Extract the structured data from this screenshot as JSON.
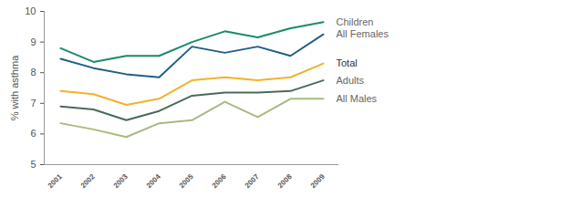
{
  "chart_data": {
    "type": "line",
    "y_label": "% with asthma",
    "x": [
      2001,
      2002,
      2003,
      2004,
      2005,
      2006,
      2007,
      2008,
      2009
    ],
    "ylim": [
      5,
      10
    ],
    "yticks": [
      5,
      6,
      7,
      8,
      9,
      10
    ],
    "grid": false,
    "series": [
      {
        "name": "Children",
        "color": "#1b8a6b",
        "values": [
          8.8,
          8.35,
          8.55,
          8.55,
          9.0,
          9.35,
          9.15,
          9.45,
          9.65
        ]
      },
      {
        "name": "All Females",
        "color": "#1f5f86",
        "values": [
          8.45,
          8.15,
          7.95,
          7.85,
          8.85,
          8.65,
          8.85,
          8.55,
          9.25
        ]
      },
      {
        "name": "Total",
        "color": "#f2b22c",
        "values": [
          7.4,
          7.3,
          6.95,
          7.15,
          7.75,
          7.85,
          7.75,
          7.85,
          8.3
        ]
      },
      {
        "name": "Adults",
        "color": "#4b6a59",
        "values": [
          6.9,
          6.8,
          6.45,
          6.75,
          7.25,
          7.35,
          7.35,
          7.4,
          7.75
        ]
      },
      {
        "name": "All Males",
        "color": "#a8ba80",
        "values": [
          6.35,
          6.15,
          5.9,
          6.35,
          6.45,
          7.05,
          6.55,
          7.15,
          7.15
        ]
      }
    ]
  }
}
